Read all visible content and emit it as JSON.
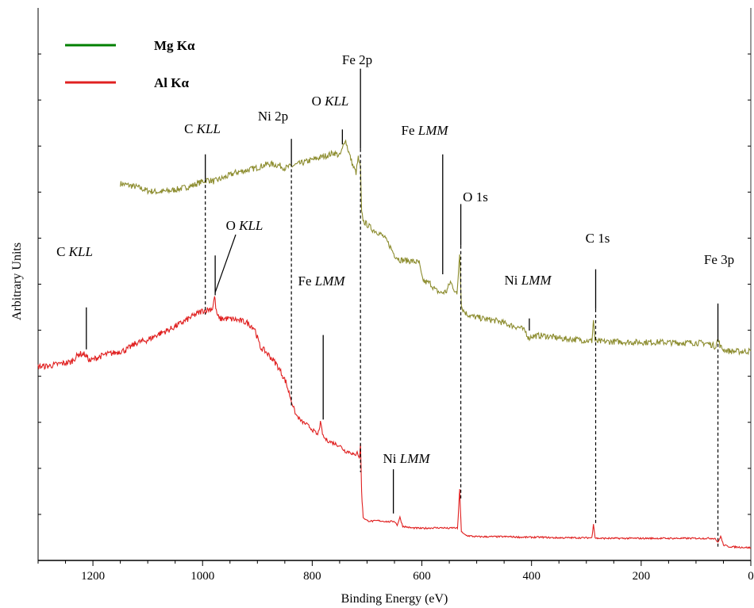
{
  "chart_data": {
    "type": "line",
    "xlabel": "Binding Energy (eV)",
    "ylabel": "Arbitrary Units",
    "xlim": [
      1300,
      0
    ],
    "x_reversed": true,
    "x_ticks": [
      1200,
      1000,
      800,
      600,
      400,
      200,
      0
    ],
    "grid": false,
    "legend_position": "top-left",
    "series": [
      {
        "name": "Mg Kα",
        "color": "#8c8c2e",
        "legend_color": "#008000",
        "x": [
          1150,
          1120,
          1100,
          1080,
          1060,
          1040,
          1020,
          1000,
          990,
          980,
          960,
          940,
          920,
          900,
          880,
          860,
          850,
          840,
          820,
          800,
          780,
          770,
          760,
          750,
          745,
          740,
          732,
          725,
          720,
          716,
          712,
          710,
          706,
          700,
          690,
          680,
          670,
          660,
          650,
          640,
          620,
          605,
          600,
          595,
          585,
          575,
          565,
          555,
          548,
          542,
          536,
          531,
          528,
          524,
          518,
          510,
          500,
          480,
          460,
          440,
          420,
          410,
          405,
          400,
          380,
          360,
          340,
          320,
          300,
          290,
          287,
          284,
          280,
          260,
          240,
          220,
          200,
          180,
          160,
          140,
          120,
          100,
          80,
          70,
          65,
          60,
          55,
          50,
          40,
          20,
          0
        ],
        "y": [
          68.2,
          67.6,
          66.9,
          66.7,
          66.9,
          67.3,
          67.8,
          68.6,
          68.9,
          68.6,
          69.3,
          70.2,
          70.6,
          71.1,
          71.8,
          71.5,
          71.0,
          71.3,
          71.9,
          72.5,
          73.1,
          73.4,
          73.8,
          73.2,
          74.4,
          76.3,
          73.4,
          71.2,
          70.2,
          72.9,
          70.9,
          62.8,
          61.3,
          60.8,
          59.9,
          59.4,
          58.6,
          57.2,
          55.3,
          54.4,
          54.2,
          53.9,
          51.2,
          50.4,
          50.2,
          48.9,
          48.4,
          48.7,
          50.4,
          49.3,
          48.0,
          55.8,
          46.1,
          45.2,
          44.6,
          44.2,
          44.0,
          43.6,
          43.3,
          42.6,
          42.1,
          41.3,
          40.2,
          40.6,
          40.7,
          40.4,
          40.1,
          40.0,
          39.8,
          39.7,
          43.6,
          39.6,
          39.6,
          39.6,
          39.6,
          39.5,
          39.5,
          39.5,
          39.5,
          39.4,
          39.4,
          39.4,
          39.3,
          39.0,
          38.7,
          40.0,
          38.6,
          38.2,
          37.9,
          37.8,
          37.9
        ]
      },
      {
        "name": "Al Kα",
        "color": "#e02020",
        "legend_color": "#e02020",
        "x": [
          1300,
          1280,
          1260,
          1240,
          1225,
          1215,
          1205,
          1195,
          1180,
          1160,
          1140,
          1120,
          1100,
          1080,
          1060,
          1040,
          1020,
          1000,
          990,
          982,
          978,
          975,
          970,
          960,
          940,
          920,
          905,
          895,
          885,
          875,
          865,
          855,
          848,
          840,
          830,
          820,
          810,
          800,
          790,
          785,
          780,
          775,
          770,
          760,
          750,
          740,
          730,
          722,
          718,
          714,
          712,
          710,
          707,
          700,
          690,
          680,
          670,
          660,
          650,
          645,
          640,
          635,
          620,
          600,
          580,
          560,
          550,
          545,
          540,
          535,
          531,
          528,
          524,
          518,
          510,
          500,
          480,
          460,
          440,
          420,
          400,
          380,
          360,
          340,
          320,
          300,
          290,
          287,
          284,
          280,
          260,
          240,
          220,
          200,
          180,
          160,
          140,
          120,
          100,
          80,
          70,
          65,
          60,
          55,
          50,
          40,
          20,
          0
        ],
        "y": [
          35.1,
          35.2,
          35.6,
          35.9,
          37.4,
          37.3,
          36.1,
          36.6,
          37.2,
          37.6,
          38.1,
          39.4,
          39.9,
          41.0,
          41.8,
          42.9,
          44.1,
          45.2,
          45.4,
          45.6,
          47.8,
          45.0,
          43.7,
          43.8,
          43.6,
          43.1,
          42.0,
          38.6,
          37.8,
          36.7,
          35.5,
          33.7,
          32.3,
          29.5,
          26.4,
          25.2,
          24.6,
          23.7,
          22.7,
          24.9,
          22.4,
          21.9,
          21.6,
          21.2,
          20.8,
          19.8,
          19.6,
          18.9,
          19.9,
          18.3,
          21.2,
          12.5,
          7.8,
          7.2,
          7.1,
          7.2,
          7.1,
          7.0,
          7.1,
          6.4,
          7.8,
          6.2,
          5.9,
          5.8,
          5.9,
          5.9,
          5.8,
          5.9,
          5.9,
          5.8,
          12.7,
          5.2,
          4.8,
          4.5,
          4.4,
          4.3,
          4.3,
          4.3,
          4.3,
          4.2,
          4.2,
          4.2,
          4.1,
          4.1,
          4.1,
          4.1,
          4.1,
          6.7,
          4.1,
          4.0,
          4.0,
          4.0,
          4.0,
          4.0,
          4.0,
          4.0,
          4.0,
          4.0,
          4.0,
          4.0,
          4.0,
          4.0,
          3.2,
          4.4,
          2.8,
          2.5,
          2.4,
          2.3
        ]
      }
    ],
    "annotations": [
      {
        "el": "C",
        "it": "KLL",
        "base_x": 995,
        "line_y1": 69,
        "line_y2": 73.5,
        "drop_to": 44.5
      },
      {
        "el": "Ni 2p",
        "it": "",
        "base_x": 838,
        "line_y1": 71.8,
        "line_y2": 76.3,
        "drop_to": 28
      },
      {
        "el": "O",
        "it": "KLL",
        "base_x": 745,
        "line_y1": 75.3,
        "line_y2": 78.0,
        "drop_to": null
      },
      {
        "el": "Fe 2p",
        "it": "",
        "base_x": 712,
        "line_y1": 74.5,
        "line_y2": 89,
        "drop_to": 16
      },
      {
        "el": "Fe",
        "it": "LMM",
        "base_x": 562,
        "line_y1": 51.8,
        "line_y2": 73.5,
        "drop_to": null
      },
      {
        "el": "O 1s",
        "it": "",
        "base_x": 529,
        "line_y1": 57,
        "line_y2": 64.5,
        "drop_to": 11
      },
      {
        "el": "Ni",
        "it": "LMM",
        "base_x": 404,
        "line_y1": 41.6,
        "line_y2": 43.8,
        "drop_to": null
      },
      {
        "el": "C 1s",
        "it": "",
        "base_x": 283,
        "line_y1": 45.5,
        "line_y2": 52.7,
        "drop_to": 6.5
      },
      {
        "el": "Fe 3p",
        "it": "",
        "base_x": 60,
        "line_y1": 40.2,
        "line_y2": 46.5,
        "drop_to": 2.5
      },
      {
        "el": "C",
        "it": "KLL",
        "base_x": 1212,
        "line_y1": 38.2,
        "line_y2": 45.8,
        "drop_to": null
      },
      {
        "el": "O",
        "it": "KLL",
        "base_x": 977,
        "line_y1": 48.0,
        "line_y2": 55.2,
        "drop_to": null
      },
      {
        "el": "Fe",
        "it": "LMM",
        "base_x": 780,
        "line_y1": 25.5,
        "line_y2": 40.8,
        "drop_to": null
      },
      {
        "el": "Ni",
        "it": "LMM",
        "base_x": 652,
        "line_y1": 8.5,
        "line_y2": 16.5,
        "drop_to": null
      }
    ]
  }
}
